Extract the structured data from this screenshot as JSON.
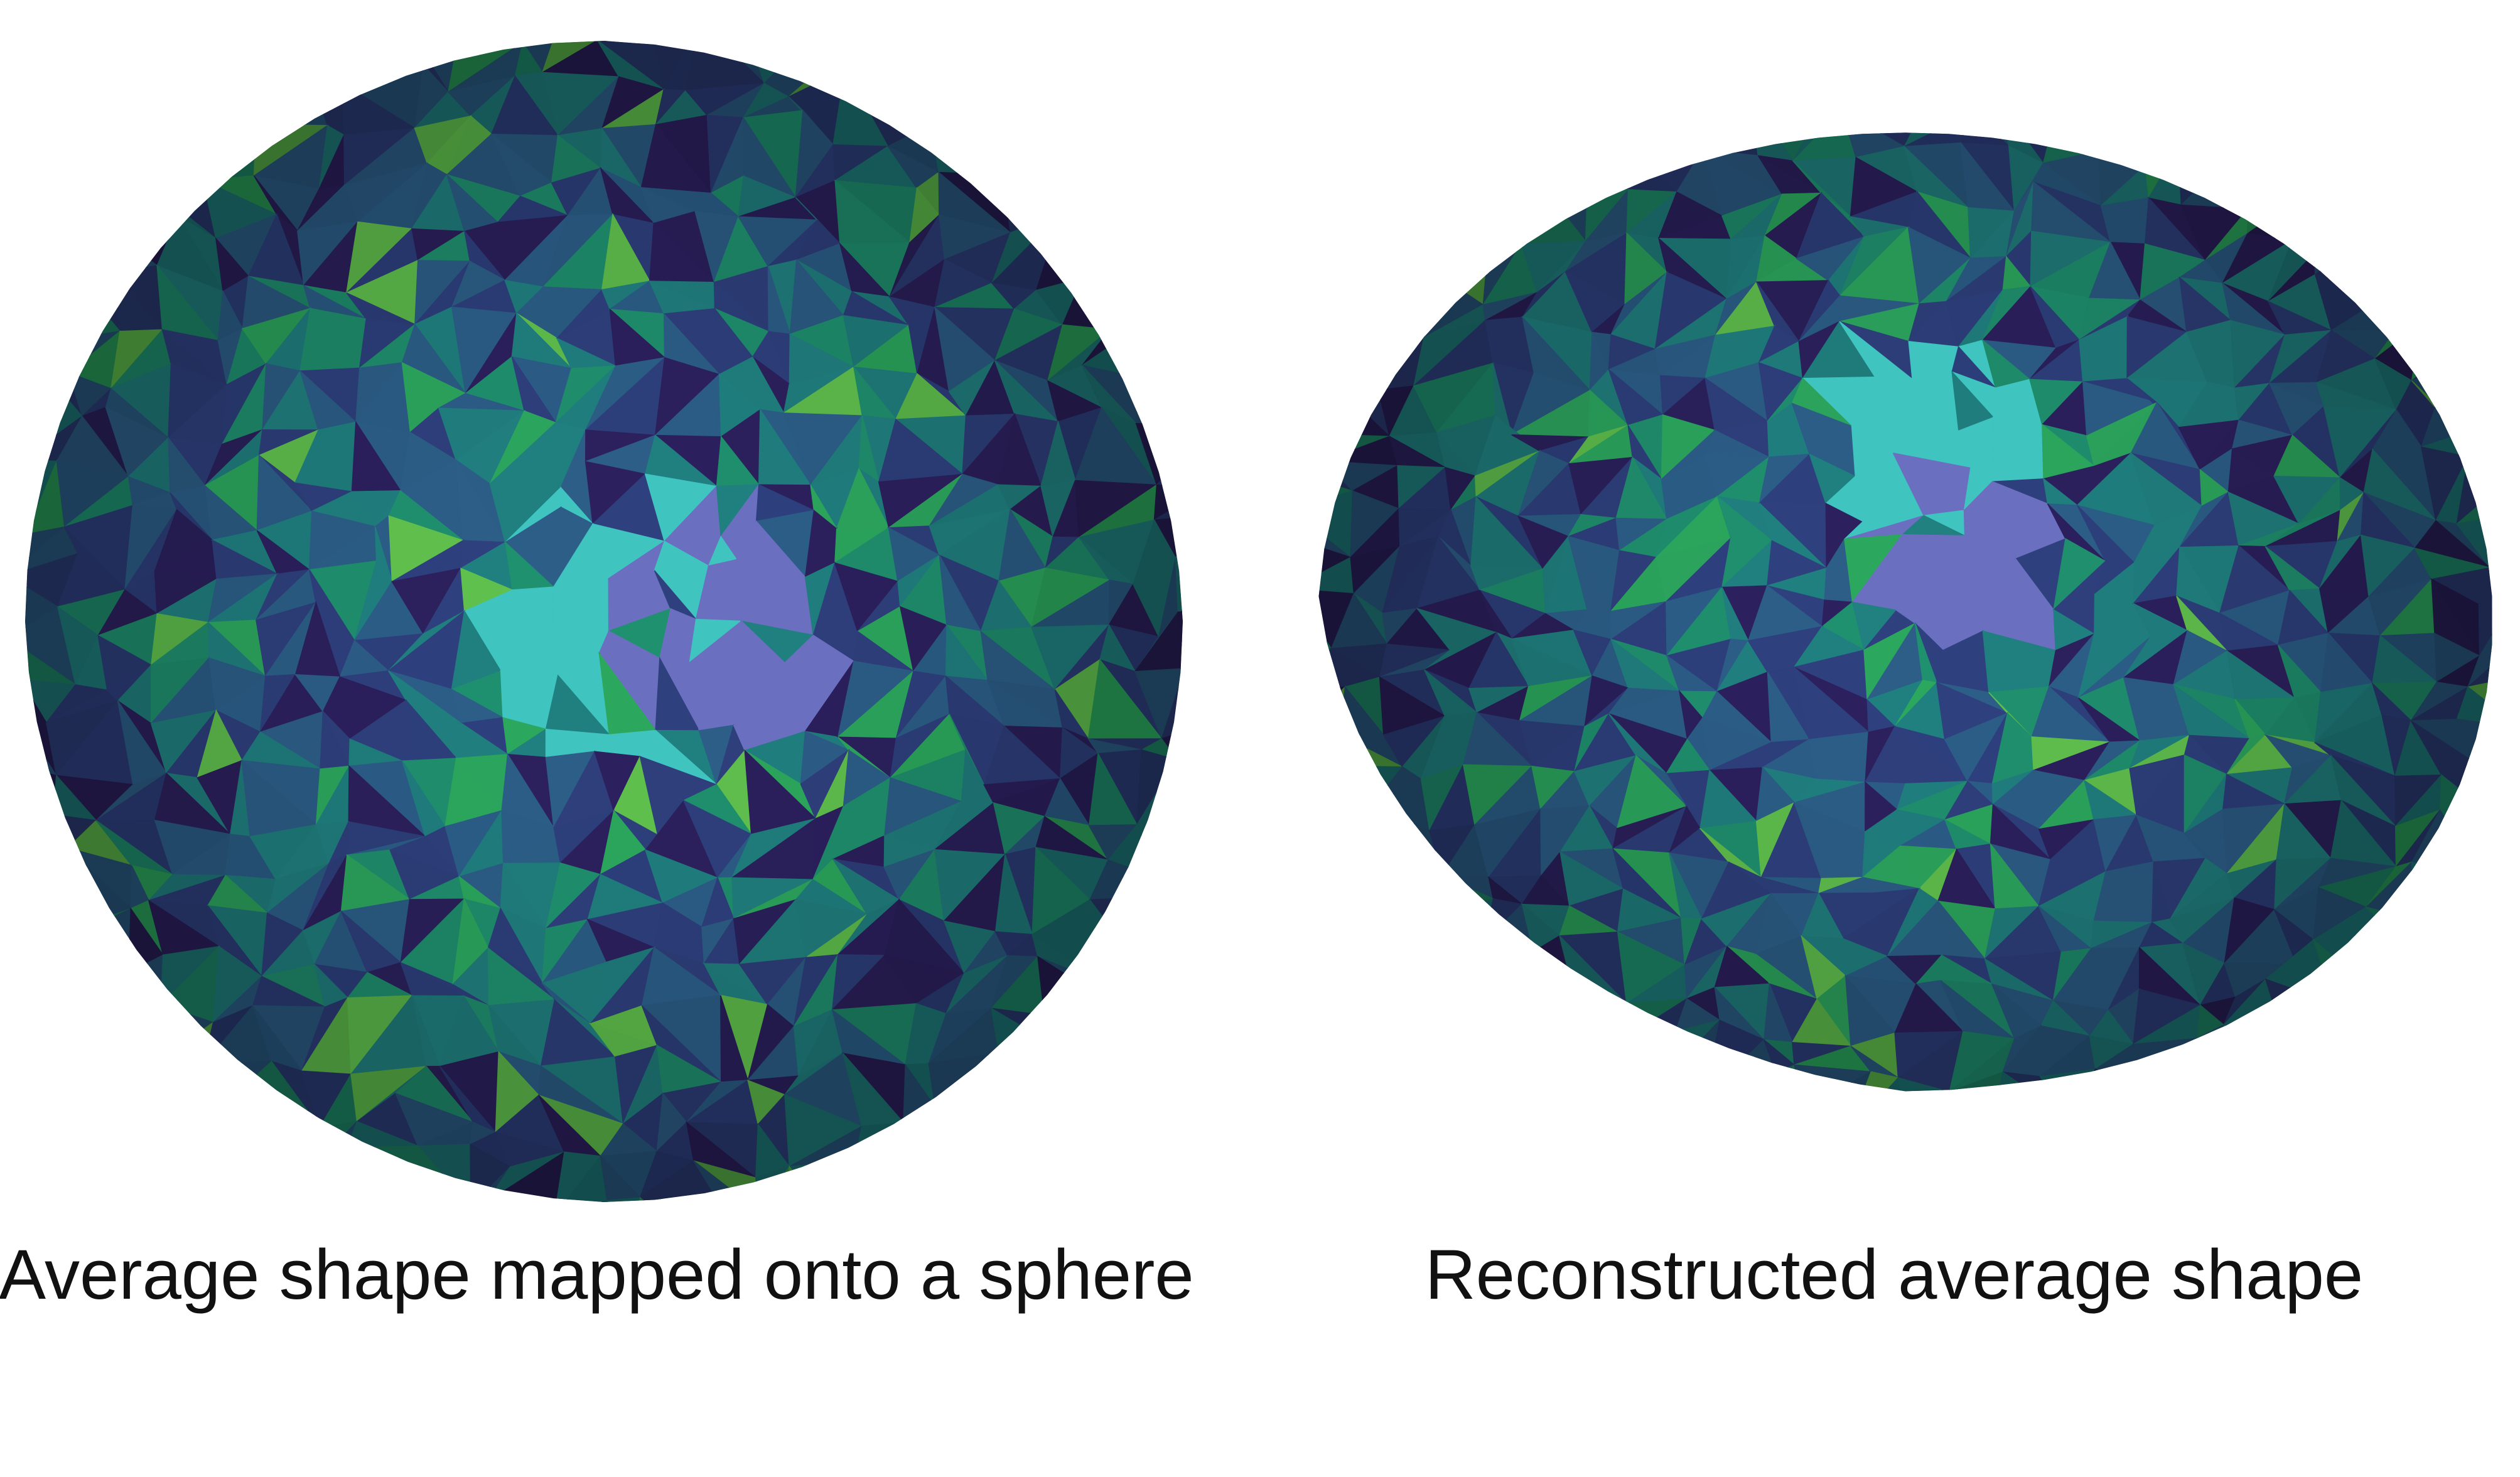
{
  "figure": {
    "panels": [
      {
        "id": "left",
        "caption": "Average shape mapped onto a sphere",
        "shape": "sphere",
        "mesh_type": "triangulated-surface"
      },
      {
        "id": "right",
        "caption": "Reconstructed average shape",
        "shape": "irregular-blob",
        "mesh_type": "triangulated-surface"
      }
    ],
    "colormap": {
      "name": "viridis-like",
      "stops": [
        "#2a1f5a",
        "#2c3d78",
        "#2a5a82",
        "#1f7a7a",
        "#1e8a6a",
        "#2aa05a",
        "#5cb84a",
        "#3fc4c0",
        "#6b6fc0"
      ]
    }
  }
}
